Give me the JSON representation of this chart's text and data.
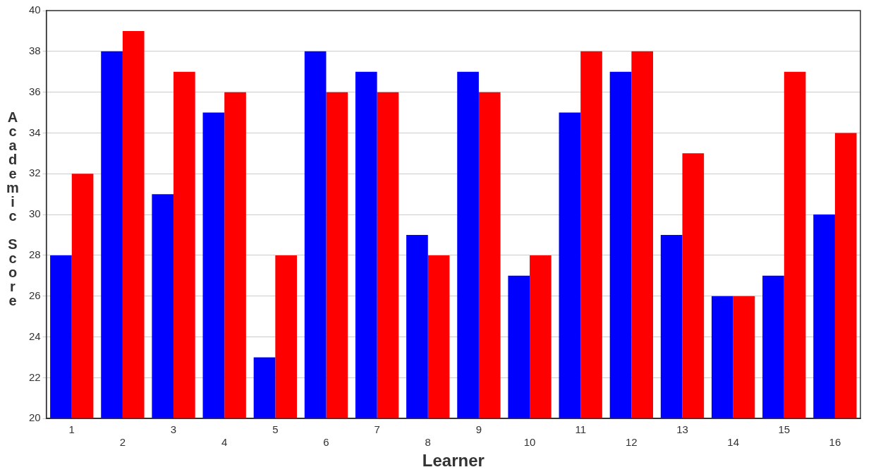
{
  "chart_data": {
    "type": "bar",
    "xlabel": "Learner",
    "ylabel": "Academic Score",
    "categories": [
      "1",
      "2",
      "3",
      "4",
      "5",
      "6",
      "7",
      "8",
      "9",
      "10",
      "11",
      "12",
      "13",
      "14",
      "15",
      "16"
    ],
    "series": [
      {
        "color": "#0000ff",
        "values": [
          28,
          38,
          31,
          35,
          23,
          38,
          37,
          29,
          37,
          27,
          35,
          37,
          29,
          26,
          27,
          30
        ]
      },
      {
        "color": "#ff0000",
        "values": [
          32,
          39,
          37,
          36,
          28,
          36,
          36,
          28,
          36,
          28,
          38,
          38,
          33,
          26,
          37,
          34
        ]
      }
    ],
    "ylim": [
      20,
      40
    ],
    "yticks": [
      20,
      22,
      24,
      26,
      28,
      30,
      32,
      34,
      36,
      38,
      40
    ],
    "grid": "y",
    "legend": false
  }
}
